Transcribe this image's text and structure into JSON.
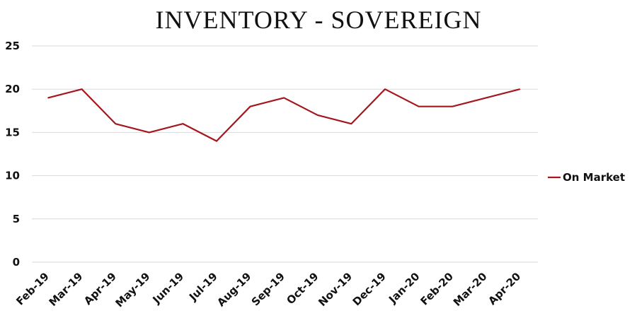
{
  "chart_data": {
    "type": "line",
    "title": "INVENTORY - SOVEREIGN",
    "categories": [
      "Feb-19",
      "Mar-19",
      "Apr-19",
      "May-19",
      "Jun-19",
      "Jul-19",
      "Aug-19",
      "Sep-19",
      "Oct-19",
      "Nov-19",
      "Dec-19",
      "Jan-20",
      "Feb-20",
      "Mar-20",
      "Apr-20"
    ],
    "series": [
      {
        "name": "On Market",
        "values": [
          19,
          20,
          16,
          15,
          16,
          14,
          18,
          19,
          17,
          16,
          20,
          18,
          18,
          19,
          20
        ]
      }
    ],
    "yticks": [
      "0",
      "5",
      "10",
      "15",
      "20",
      "25"
    ],
    "ylim": [
      0,
      25
    ],
    "grid": true,
    "legend_position": "right",
    "line_color": "#A5161D",
    "grid_color": "#D9D9D9"
  }
}
